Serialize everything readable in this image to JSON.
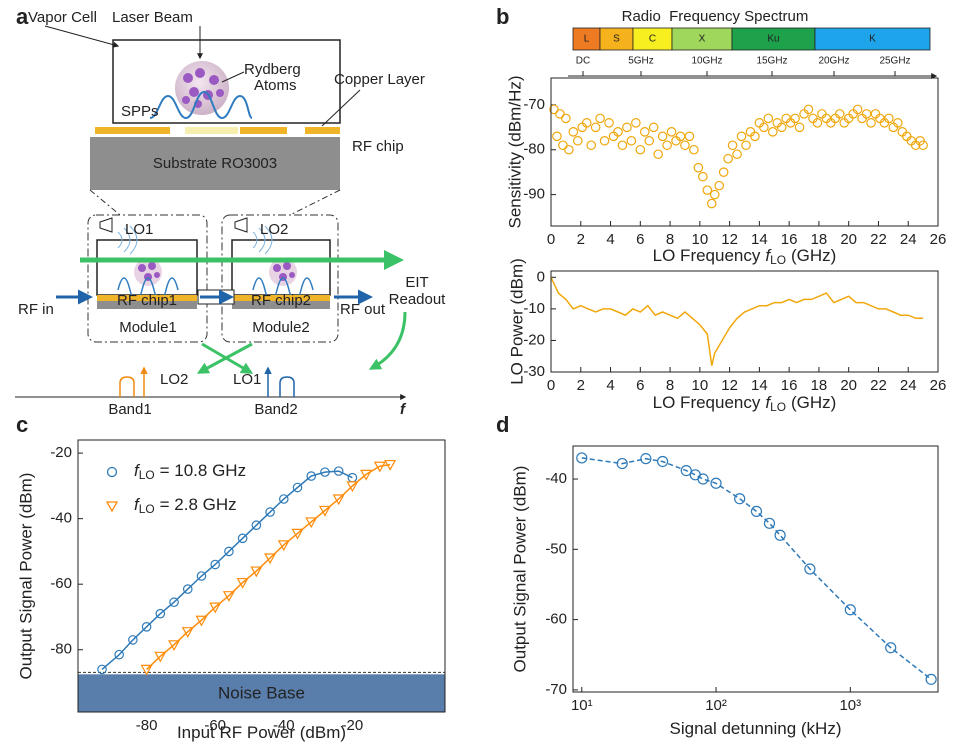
{
  "panel_labels": {
    "a": "a",
    "b": "b",
    "c": "c",
    "d": "d"
  },
  "diagram": {
    "vapor_cell": "Vapor Cell",
    "laser_beam": "Laser Beam",
    "rydberg": [
      "Rydberg",
      "Atoms"
    ],
    "copper_layer": "Copper Layer",
    "spps": "SPPs",
    "rf_chip": "RF chip",
    "substrate": "Substrate RO3003",
    "module_lo": [
      "LO1",
      "LO2"
    ],
    "eit": [
      "EIT",
      "Readout"
    ],
    "rf_in": "RF in",
    "rf_out": "RF out",
    "chips": [
      "RF chip1",
      "RF chip2"
    ],
    "modules": [
      "Module1",
      "Module2"
    ],
    "band_lo": [
      "LO2",
      "LO1"
    ],
    "bands": [
      "Band1",
      "Band2"
    ],
    "freq_axis": "f"
  },
  "spectrum": {
    "title": "Radio  Frequency Spectrum",
    "bands": [
      {
        "label": "L",
        "color": "#ee7a22"
      },
      {
        "label": "S",
        "color": "#f6b21c"
      },
      {
        "label": "C",
        "color": "#f7ef1f"
      },
      {
        "label": "X",
        "color": "#9fd65c"
      },
      {
        "label": "Ku",
        "color": "#1da24b"
      },
      {
        "label": "K",
        "color": "#1ea4ea"
      }
    ],
    "ticks": [
      "DC",
      "5GHz",
      "10GHz",
      "15GHz",
      "20GHz",
      "25GHz"
    ]
  },
  "chart_data": [
    {
      "type": "scatter",
      "ylabel": "Sensitivity (dBm/Hz)",
      "xlabel": {
        "text": "LO Frequency",
        "symbol": "f",
        "subscript": "LO",
        "unit": "(GHz)"
      },
      "x": [
        0.2,
        0.4,
        0.6,
        0.8,
        1.0,
        1.2,
        1.5,
        1.8,
        2.1,
        2.4,
        2.7,
        3.0,
        3.3,
        3.6,
        3.9,
        4.2,
        4.5,
        4.8,
        5.1,
        5.4,
        5.7,
        6.0,
        6.3,
        6.6,
        6.9,
        7.2,
        7.5,
        7.8,
        8.1,
        8.4,
        8.7,
        9.0,
        9.3,
        9.6,
        9.9,
        10.2,
        10.5,
        10.8,
        11.0,
        11.3,
        11.6,
        11.9,
        12.2,
        12.5,
        12.8,
        13.1,
        13.4,
        13.7,
        14.0,
        14.3,
        14.6,
        14.9,
        15.2,
        15.5,
        15.8,
        16.1,
        16.4,
        16.7,
        17.0,
        17.3,
        17.6,
        17.9,
        18.2,
        18.5,
        18.8,
        19.1,
        19.4,
        19.7,
        20.0,
        20.3,
        20.6,
        20.9,
        21.2,
        21.5,
        21.8,
        22.1,
        22.4,
        22.7,
        23.0,
        23.3,
        23.6,
        23.9,
        24.2,
        24.5,
        24.8,
        25.0
      ],
      "series": [
        {
          "color": "#f0a70c",
          "marker": "circle",
          "line": "none",
          "values": [
            -71,
            -77,
            -72,
            -79,
            -73,
            -80,
            -76,
            -78,
            -75,
            -74,
            -79,
            -75,
            -73,
            -78,
            -74,
            -77,
            -76,
            -79,
            -75,
            -78,
            -74,
            -80,
            -76,
            -78,
            -75,
            -81,
            -77,
            -79,
            -76,
            -78,
            -77,
            -79,
            -77,
            -80,
            -84,
            -86,
            -89,
            -92,
            -90,
            -88,
            -85,
            -82,
            -79,
            -81,
            -77,
            -79,
            -76,
            -77,
            -74,
            -75,
            -73,
            -76,
            -74,
            -75,
            -73,
            -74,
            -73,
            -75,
            -72,
            -71,
            -73,
            -74,
            -72,
            -73,
            -74,
            -73,
            -72,
            -74,
            -73,
            -72,
            -71,
            -73,
            -72,
            -74,
            -72,
            -73,
            -74,
            -73,
            -75,
            -74,
            -76,
            -77,
            -78,
            -79,
            -78,
            -79
          ]
        }
      ],
      "xlim": [
        0,
        26
      ],
      "xticks": [
        0,
        2,
        4,
        6,
        8,
        10,
        12,
        14,
        16,
        18,
        20,
        22,
        24,
        26
      ],
      "ylim": [
        -97,
        -64
      ],
      "yticks": [
        -90,
        -80,
        -70
      ]
    },
    {
      "type": "line",
      "ylabel": "LO Power (dBm)",
      "xlabel": {
        "text": "LO Frequency",
        "symbol": "f",
        "subscript": "LO",
        "unit": "(GHz)"
      },
      "x": [
        0,
        0.5,
        1,
        1.5,
        2,
        2.5,
        3,
        3.5,
        4,
        4.5,
        5,
        5.5,
        6,
        6.5,
        7,
        7.5,
        8,
        8.5,
        9,
        9.5,
        10,
        10.5,
        10.8,
        11,
        11.5,
        12,
        12.5,
        13,
        13.5,
        14,
        14.5,
        15,
        15.5,
        16,
        16.5,
        17,
        17.5,
        18,
        18.5,
        19,
        19.5,
        20,
        20.5,
        21,
        21.5,
        22,
        22.5,
        23,
        23.5,
        24,
        24.5,
        25
      ],
      "series": [
        {
          "color": "#f0a70c",
          "marker": "none",
          "line": "solid",
          "values": [
            0,
            -5,
            -7,
            -10,
            -9,
            -10,
            -11,
            -10,
            -10,
            -11,
            -12,
            -10,
            -11,
            -9,
            -12,
            -11,
            -12,
            -13,
            -11,
            -13,
            -15,
            -18,
            -28,
            -24,
            -20,
            -16,
            -13,
            -11,
            -10,
            -9,
            -9,
            -8,
            -8,
            -7,
            -8,
            -7,
            -7,
            -6,
            -5,
            -8,
            -7,
            -6,
            -8,
            -8,
            -9,
            -10,
            -10,
            -11,
            -12,
            -12,
            -13,
            -13
          ]
        }
      ],
      "xlim": [
        0,
        26
      ],
      "xticks": [
        0,
        2,
        4,
        6,
        8,
        10,
        12,
        14,
        16,
        18,
        20,
        22,
        24,
        26
      ],
      "ylim": [
        -30,
        2
      ],
      "yticks": [
        -30,
        -20,
        -10,
        0
      ]
    },
    {
      "type": "line",
      "xlabel": {
        "text": "Input RF Power (dBm)"
      },
      "ylabel": "Output Signal Power (dBm)",
      "legend": "upper left",
      "noise_base": {
        "label": "Noise Base",
        "level": -87.5,
        "color": "#5a7eab"
      },
      "series": [
        {
          "name": {
            "symbol": "f",
            "subscript": "LO",
            "text": "= 10.8 GHz"
          },
          "color": "#2e7ab8",
          "marker": "circle",
          "line": "solid",
          "x": [
            -93,
            -88,
            -84,
            -80,
            -76,
            -72,
            -68,
            -64,
            -60,
            -56,
            -52,
            -48,
            -44,
            -40,
            -36,
            -32,
            -28,
            -24,
            -20
          ],
          "values": [
            -86,
            -81.5,
            -77,
            -73,
            -69,
            -65.5,
            -61.5,
            -57.5,
            -54,
            -50,
            -46,
            -42,
            -38,
            -34,
            -30.5,
            -27,
            -25.8,
            -25.5,
            -27.5
          ]
        },
        {
          "name": {
            "symbol": "f",
            "subscript": "LO",
            "text": "= 2.8 GHz"
          },
          "color": "#ff8c0a",
          "marker": "triangle",
          "line": "solid",
          "x": [
            -80,
            -76,
            -72,
            -68,
            -64,
            -60,
            -56,
            -52,
            -48,
            -44,
            -40,
            -36,
            -32,
            -28,
            -24,
            -20,
            -16,
            -12,
            -9
          ],
          "values": [
            -86,
            -82,
            -78.5,
            -74.5,
            -71,
            -67,
            -63.5,
            -59.5,
            -56,
            -52,
            -48,
            -44.5,
            -41,
            -37.5,
            -34,
            -30,
            -26.5,
            -24,
            -23.5
          ]
        }
      ],
      "xlim": [
        -100,
        7
      ],
      "xticks": [
        -80,
        -60,
        -40,
        -20
      ],
      "ylim": [
        -99,
        -16
      ],
      "yticks": [
        -80,
        -60,
        -40,
        -20
      ]
    },
    {
      "type": "line",
      "xlabel": {
        "text": "Signal detunning (kHz)"
      },
      "ylabel": "Output Signal Power (dBm)",
      "xscale": "log",
      "x": [
        10,
        20,
        30,
        40,
        60,
        70,
        80,
        100,
        150,
        200,
        250,
        300,
        500,
        1000,
        2000,
        4000
      ],
      "series": [
        {
          "color": "#2e7ab8",
          "marker": "circle",
          "line": "dashed",
          "values": [
            -37,
            -37.8,
            -37.1,
            -37.5,
            -38.8,
            -39.4,
            -40,
            -40.6,
            -42.8,
            -44.6,
            -46.3,
            -48,
            -52.8,
            -58.6,
            -64,
            -68.5
          ]
        }
      ],
      "xlim": [
        8.6,
        4500
      ],
      "xticks": [
        {
          "value": 10,
          "label": "10¹"
        },
        {
          "value": 100,
          "label": "10²"
        },
        {
          "value": 1000,
          "label": "10³"
        }
      ],
      "ylim": [
        -70.3,
        -35.3
      ],
      "yticks": [
        -70,
        -60,
        -50,
        -40
      ]
    }
  ]
}
